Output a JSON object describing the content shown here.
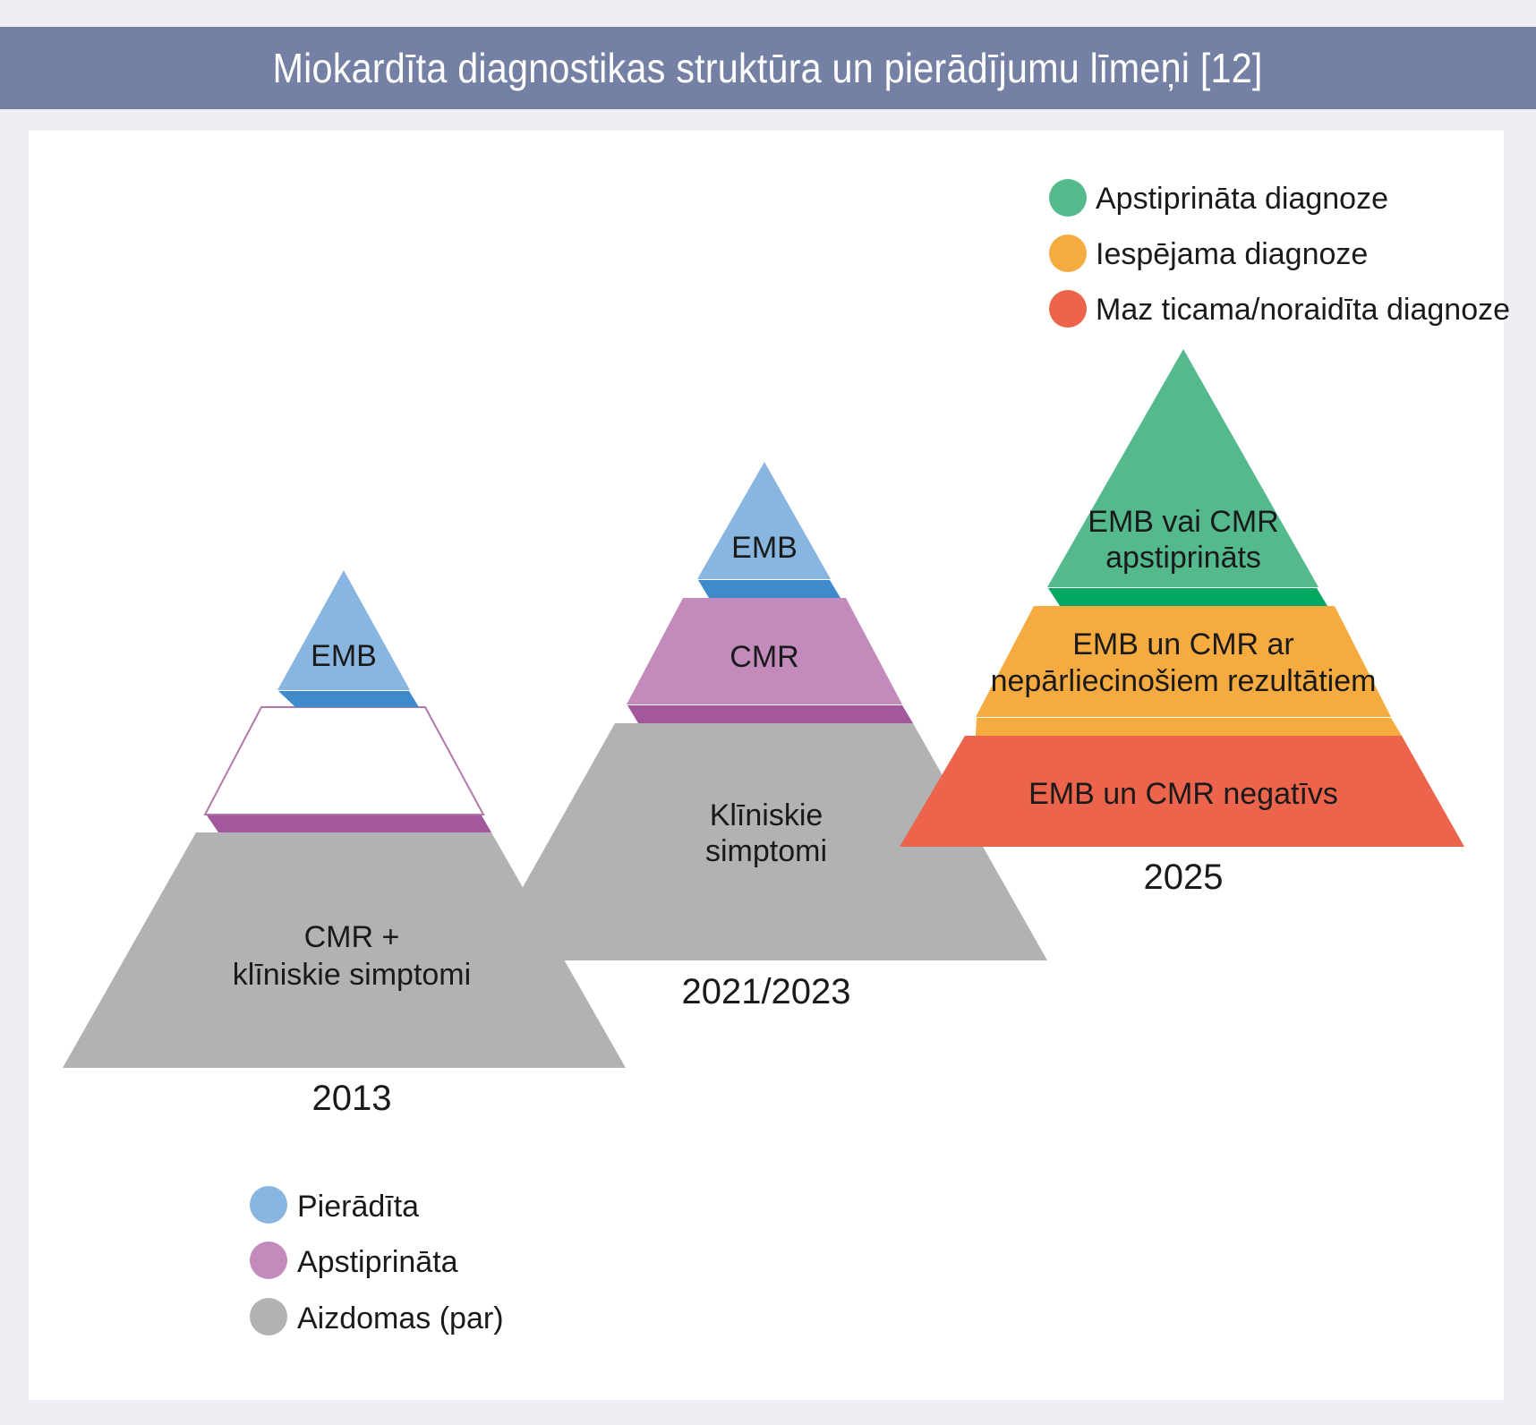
{
  "header": {
    "title": "Miokardīta diagnostikas struktūra un pierādījumu līmeņi [12]"
  },
  "colors": {
    "header_bg": "#7480a4",
    "proven_light": "#88b6e0",
    "proven_dark": "#3e8acb",
    "confirmed_light": "#c28bbc",
    "confirmed_dark": "#a3579c",
    "suspected": "#b1b2b4",
    "green_light": "#55b98e",
    "green_dark": "#00a862",
    "orange": "#f5ab3f",
    "red": "#ec644b",
    "empty_stroke": "#b278aa"
  },
  "pyramids": {
    "p2013": {
      "year": "2013",
      "top_label": "EMB",
      "middle_label": "",
      "bottom_label_1": "CMR +",
      "bottom_label_2": "klīniskie simptomi"
    },
    "p2021": {
      "year": "2021/2023",
      "top_label": "EMB",
      "middle_label": "CMR",
      "bottom_label_1": "Klīniskie",
      "bottom_label_2": "simptomi"
    },
    "p2025": {
      "year": "2025",
      "top_label_1": "EMB vai CMR",
      "top_label_2": "apstiprināts",
      "middle_label_1": "EMB un CMR ar",
      "middle_label_2": "nepārliecinošiem rezultātiem",
      "bottom_label": "EMB un CMR negatīvs"
    }
  },
  "legend_evidence": {
    "items": [
      {
        "label": "Pierādīta",
        "color": "#88b6e0"
      },
      {
        "label": "Apstiprināta",
        "color": "#c28bbc"
      },
      {
        "label": "Aizdomas (par)",
        "color": "#b1b2b4"
      }
    ]
  },
  "legend_diagnosis": {
    "items": [
      {
        "label": "Apstiprināta diagnoze",
        "color": "#55b98e"
      },
      {
        "label": "Iespējama diagnoze",
        "color": "#f5ab3f"
      },
      {
        "label": "Maz ticama/noraidīta diagnoze",
        "color": "#ec644b"
      }
    ]
  }
}
